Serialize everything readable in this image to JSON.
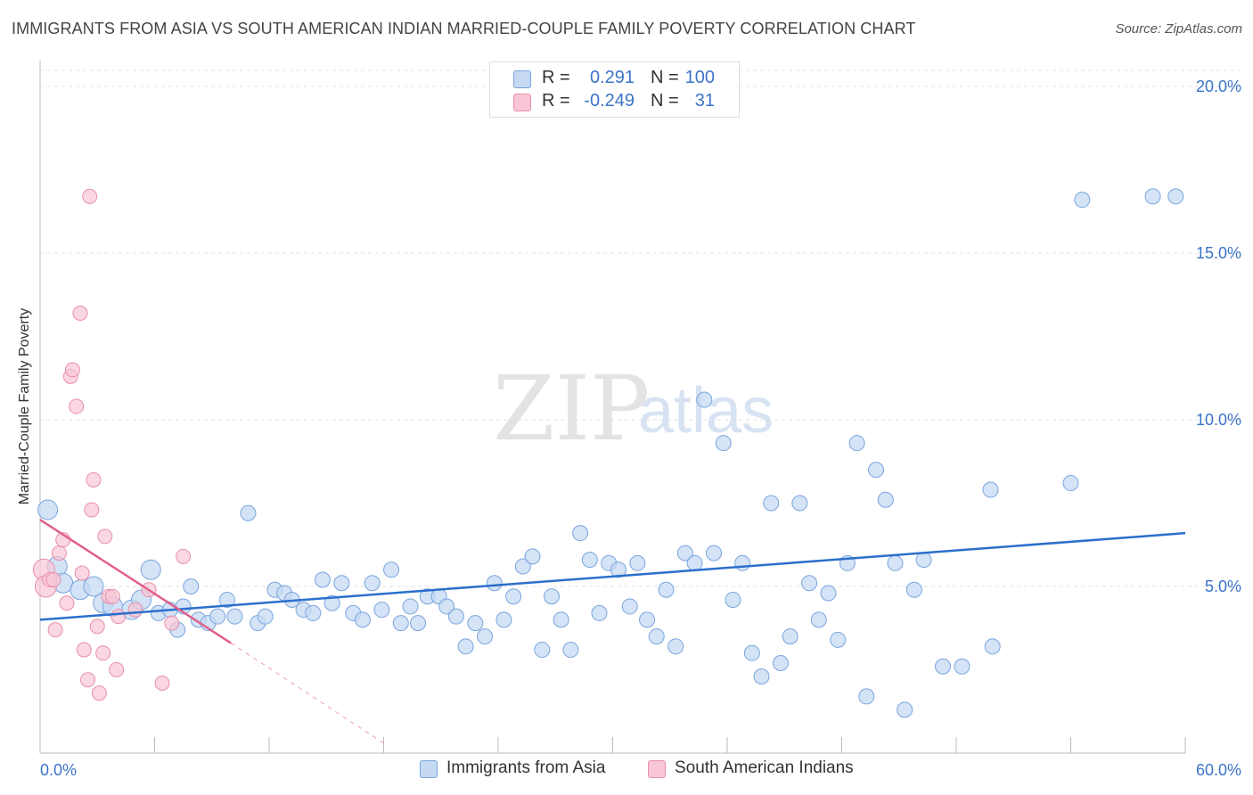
{
  "title": "IMMIGRANTS FROM ASIA VS SOUTH AMERICAN INDIAN MARRIED-COUPLE FAMILY POVERTY CORRELATION CHART",
  "source": "Source: ZipAtlas.com",
  "watermark": {
    "zip": "ZIP",
    "atlas": "atlas"
  },
  "legend": {
    "r_label": "R =",
    "n_label": "N =",
    "series": [
      {
        "r": "0.291",
        "n": "100"
      },
      {
        "r": "-0.249",
        "n": "31"
      }
    ]
  },
  "colors": {
    "blue_fill": "#c5d9f3",
    "blue_stroke": "#7aa5dd",
    "blue_line": "#2b6fcc",
    "pink_fill": "#f8c6d5",
    "pink_stroke": "#e88fab",
    "pink_line": "#e0608a",
    "tick_label": "#3b73c8"
  },
  "chart_data": {
    "type": "scatter",
    "title": "IMMIGRANTS FROM ASIA VS SOUTH AMERICAN INDIAN MARRIED-COUPLE FAMILY POVERTY CORRELATION CHART",
    "xlabel": "",
    "ylabel": "Married-Couple Family Poverty",
    "xlim": [
      0,
      60
    ],
    "ylim": [
      0,
      20.5
    ],
    "x_tick_labels": [
      "0.0%",
      "60.0%"
    ],
    "y_tick_labels": [
      "5.0%",
      "10.0%",
      "15.0%",
      "20.0%"
    ],
    "y_ticks": [
      5,
      10,
      15,
      20
    ],
    "grid": "horizontal dashed",
    "legend_position": "top-center",
    "series": [
      {
        "name": "Immigrants from Asia",
        "color": "#7aa5dd",
        "trend": {
          "x0": 0,
          "y0": 4.0,
          "x1": 60,
          "y1": 6.6
        },
        "points": [
          [
            0.4,
            7.3
          ],
          [
            0.9,
            5.6
          ],
          [
            1.2,
            5.1
          ],
          [
            2.1,
            4.9
          ],
          [
            2.8,
            5.0
          ],
          [
            3.3,
            4.5
          ],
          [
            3.8,
            4.4
          ],
          [
            4.8,
            4.3
          ],
          [
            5.3,
            4.6
          ],
          [
            5.8,
            5.5
          ],
          [
            6.2,
            4.2
          ],
          [
            6.8,
            4.3
          ],
          [
            7.2,
            3.7
          ],
          [
            7.5,
            4.4
          ],
          [
            7.9,
            5.0
          ],
          [
            8.3,
            4.0
          ],
          [
            8.8,
            3.9
          ],
          [
            9.3,
            4.1
          ],
          [
            9.8,
            4.6
          ],
          [
            10.2,
            4.1
          ],
          [
            10.9,
            7.2
          ],
          [
            11.4,
            3.9
          ],
          [
            11.8,
            4.1
          ],
          [
            12.3,
            4.9
          ],
          [
            12.8,
            4.8
          ],
          [
            13.2,
            4.6
          ],
          [
            13.8,
            4.3
          ],
          [
            14.3,
            4.2
          ],
          [
            14.8,
            5.2
          ],
          [
            15.3,
            4.5
          ],
          [
            15.8,
            5.1
          ],
          [
            16.4,
            4.2
          ],
          [
            16.9,
            4.0
          ],
          [
            17.4,
            5.1
          ],
          [
            17.9,
            4.3
          ],
          [
            18.4,
            5.5
          ],
          [
            18.9,
            3.9
          ],
          [
            19.4,
            4.4
          ],
          [
            19.8,
            3.9
          ],
          [
            20.3,
            4.7
          ],
          [
            20.9,
            4.7
          ],
          [
            21.3,
            4.4
          ],
          [
            21.8,
            4.1
          ],
          [
            22.3,
            3.2
          ],
          [
            22.8,
            3.9
          ],
          [
            23.3,
            3.5
          ],
          [
            23.8,
            5.1
          ],
          [
            24.3,
            4.0
          ],
          [
            24.8,
            4.7
          ],
          [
            25.3,
            5.6
          ],
          [
            25.8,
            5.9
          ],
          [
            26.3,
            3.1
          ],
          [
            26.8,
            4.7
          ],
          [
            27.3,
            4.0
          ],
          [
            27.8,
            3.1
          ],
          [
            28.3,
            6.6
          ],
          [
            28.8,
            5.8
          ],
          [
            29.3,
            4.2
          ],
          [
            29.8,
            5.7
          ],
          [
            30.3,
            5.5
          ],
          [
            30.9,
            4.4
          ],
          [
            31.3,
            5.7
          ],
          [
            31.8,
            4.0
          ],
          [
            32.3,
            3.5
          ],
          [
            32.8,
            4.9
          ],
          [
            33.3,
            3.2
          ],
          [
            33.8,
            6.0
          ],
          [
            34.3,
            5.7
          ],
          [
            34.8,
            10.6
          ],
          [
            35.3,
            6.0
          ],
          [
            35.8,
            9.3
          ],
          [
            36.3,
            4.6
          ],
          [
            36.8,
            5.7
          ],
          [
            37.3,
            3.0
          ],
          [
            37.8,
            2.3
          ],
          [
            38.3,
            7.5
          ],
          [
            38.8,
            2.7
          ],
          [
            39.3,
            3.5
          ],
          [
            39.8,
            7.5
          ],
          [
            40.3,
            5.1
          ],
          [
            40.8,
            4.0
          ],
          [
            41.3,
            4.8
          ],
          [
            41.8,
            3.4
          ],
          [
            42.3,
            5.7
          ],
          [
            42.8,
            9.3
          ],
          [
            43.3,
            1.7
          ],
          [
            43.8,
            8.5
          ],
          [
            44.3,
            7.6
          ],
          [
            44.8,
            5.7
          ],
          [
            45.3,
            1.3
          ],
          [
            45.8,
            4.9
          ],
          [
            46.3,
            5.8
          ],
          [
            47.3,
            2.6
          ],
          [
            48.3,
            2.6
          ],
          [
            49.8,
            7.9
          ],
          [
            49.9,
            3.2
          ],
          [
            54.0,
            8.1
          ],
          [
            54.6,
            16.6
          ],
          [
            58.3,
            16.7
          ],
          [
            59.5,
            16.7
          ]
        ]
      },
      {
        "name": "South American Indians",
        "color": "#e88fab",
        "trend": {
          "x0": 0,
          "y0": 7.0,
          "x1": 10,
          "y1": 3.3,
          "dash_to_x": 18,
          "dash_to_y": 0.3
        },
        "points": [
          [
            0.2,
            5.5
          ],
          [
            0.3,
            5.0
          ],
          [
            0.5,
            5.2
          ],
          [
            0.7,
            5.2
          ],
          [
            0.8,
            3.7
          ],
          [
            1.0,
            6.0
          ],
          [
            1.2,
            6.4
          ],
          [
            1.4,
            4.5
          ],
          [
            1.6,
            11.3
          ],
          [
            1.7,
            11.5
          ],
          [
            1.9,
            10.4
          ],
          [
            2.1,
            13.2
          ],
          [
            2.2,
            5.4
          ],
          [
            2.3,
            3.1
          ],
          [
            2.5,
            2.2
          ],
          [
            2.6,
            16.7
          ],
          [
            2.7,
            7.3
          ],
          [
            2.8,
            8.2
          ],
          [
            3.0,
            3.8
          ],
          [
            3.1,
            1.8
          ],
          [
            3.3,
            3.0
          ],
          [
            3.4,
            6.5
          ],
          [
            3.6,
            4.7
          ],
          [
            3.8,
            4.7
          ],
          [
            4.0,
            2.5
          ],
          [
            4.1,
            4.1
          ],
          [
            5.0,
            4.3
          ],
          [
            5.7,
            4.9
          ],
          [
            6.4,
            2.1
          ],
          [
            6.9,
            3.9
          ],
          [
            7.5,
            5.9
          ]
        ]
      }
    ]
  },
  "bottom_legend": [
    "Immigrants from Asia",
    "South American Indians"
  ]
}
